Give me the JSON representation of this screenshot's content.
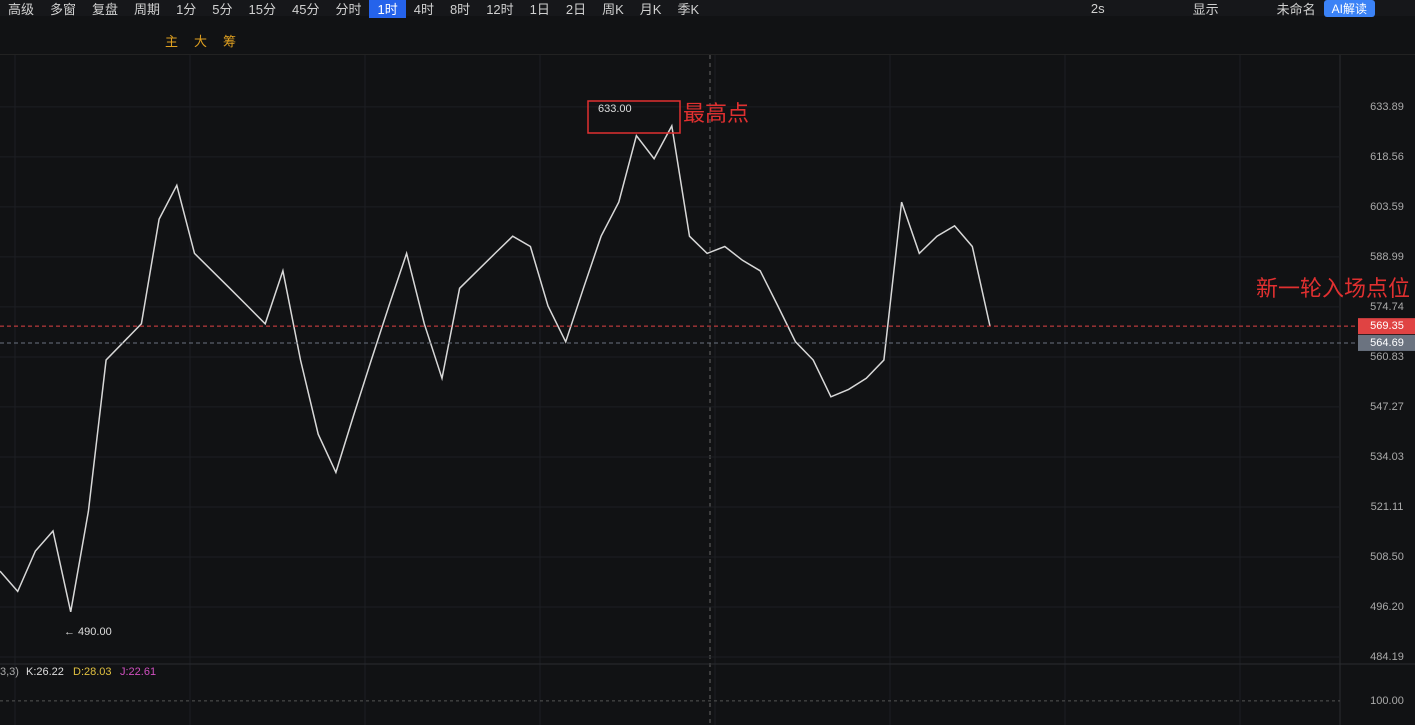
{
  "toolbar": {
    "left": [
      "高级",
      "多窗",
      "复盘",
      "周期"
    ],
    "periods": [
      "1分",
      "5分",
      "15分",
      "45分",
      "分时",
      "1时",
      "4时",
      "8时",
      "12时",
      "1日",
      "2日",
      "周K",
      "月K",
      "季K"
    ],
    "active_period": "1时",
    "right": [
      "2s",
      "显示",
      "未命名",
      "AI解读"
    ],
    "tools": [
      "主",
      "大",
      "筹"
    ]
  },
  "chart_data": [
    {
      "type": "line",
      "log_scale": true,
      "color": "#d8d8d8",
      "values": [
        505,
        500,
        510,
        515,
        495,
        520,
        560,
        565,
        570,
        600,
        610,
        590,
        585,
        580,
        575,
        570,
        585,
        560,
        540,
        530,
        545,
        560,
        575,
        590,
        570,
        555,
        580,
        585,
        590,
        595,
        592,
        575,
        565,
        580,
        595,
        605,
        625,
        618,
        628,
        595,
        590,
        592,
        588,
        585,
        575,
        565,
        560,
        550,
        552,
        555,
        560,
        605,
        590,
        595,
        598,
        592,
        569.35
      ],
      "ylim": [
        482.3,
        650.2
      ],
      "yticks": [
        633.89,
        618.56,
        603.59,
        588.99,
        574.74,
        560.83,
        547.27,
        534.03,
        521.11,
        {
          "value": 508.5,
          "label": "508.50"
        },
        {
          "value": 496.2,
          "label": "496.20"
        },
        484.19
      ],
      "price_lines": [
        {
          "value": 569.35,
          "label": "569.35",
          "color": "#e04343"
        },
        {
          "value": 564.69,
          "label": "564.69",
          "color": "#6b7380"
        }
      ],
      "annotations": {
        "high": "633.00",
        "high_note": "最高点",
        "low": "← 490.00",
        "entry_note": "新一轮入场点位"
      }
    },
    {
      "type": "kdj",
      "params": "3,3)",
      "k": "K:26.22",
      "d": "D:28.03",
      "j": "J:22.61",
      "ylim": [
        94.6,
        104
      ],
      "yticks": [
        {
          "value": 100,
          "label": "100.00"
        }
      ]
    }
  ]
}
